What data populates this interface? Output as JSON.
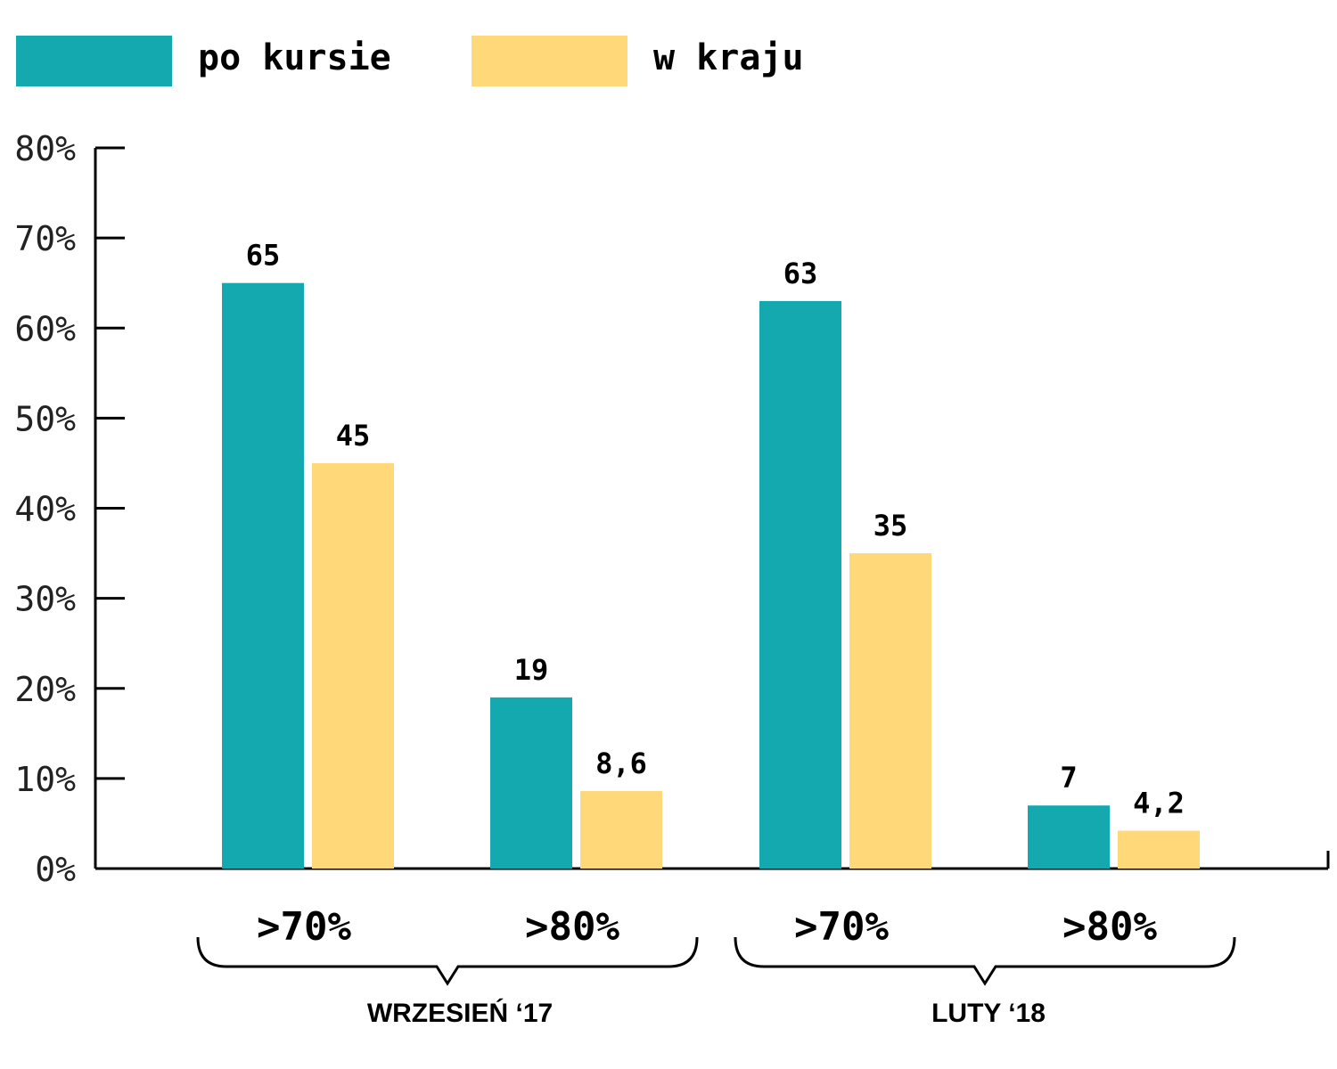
{
  "chart_data": {
    "type": "bar",
    "legend_position": "top-left",
    "series": [
      {
        "name": "po kursie",
        "color": "#14A9AE",
        "values": [
          65,
          19,
          63,
          7
        ],
        "labels": [
          "65",
          "19",
          "63",
          "7"
        ]
      },
      {
        "name": "w kraju",
        "color": "#FFD87A",
        "values": [
          45,
          8.6,
          35,
          4.2
        ],
        "labels": [
          "45",
          "8,6",
          "35",
          "4,2"
        ]
      }
    ],
    "categories": [
      ">70%",
      ">80%",
      ">70%",
      ">80%"
    ],
    "groups": [
      {
        "label": "WRZESIEŃ ‘17",
        "categories": [
          0,
          1
        ]
      },
      {
        "label": "LUTY ‘18",
        "categories": [
          2,
          3
        ]
      }
    ],
    "y_ticks": [
      "0%",
      "10%",
      "20%",
      "30%",
      "40%",
      "50%",
      "60%",
      "70%",
      "80%"
    ],
    "ylim": [
      0,
      80
    ],
    "grid": false
  }
}
